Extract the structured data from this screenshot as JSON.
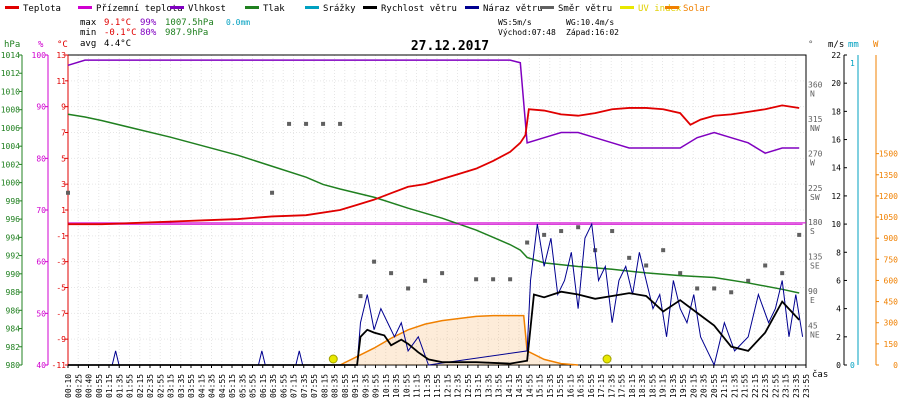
{
  "legend": [
    {
      "label": "Teplota",
      "color": "#e00000"
    },
    {
      "label": "Přízemní teplota",
      "color": "#d000d0"
    },
    {
      "label": "Vlhkost",
      "color": "#8000c0"
    },
    {
      "label": "Tlak",
      "color": "#208020"
    },
    {
      "label": "Srážky",
      "color": "#00a0c0"
    },
    {
      "label": "Rychlost větru",
      "color": "#000000"
    },
    {
      "label": "Náraz větru",
      "color": "#000090"
    },
    {
      "label": "Směr větru",
      "color": "#606060"
    },
    {
      "label": "UV index",
      "color": "#e8e800"
    },
    {
      "label": "Solar",
      "color": "#f08000"
    }
  ],
  "stats": {
    "max_label": "max",
    "max_temp": "9.1°C",
    "max_hum": "99%",
    "max_press": "1007.5hPa",
    "max_rain": "0.0mm",
    "min_label": "min",
    "min_temp": "-0.1°C",
    "min_hum": "80%",
    "min_press": "987.9hPa",
    "avg_label": "avg",
    "avg_temp": "4.4°C",
    "ws": "WS:5m/s",
    "wg": "WG:10.4m/s",
    "sunrise": "Východ:07:48",
    "sunset": "Západ:16:02"
  },
  "chart_data": {
    "type": "line",
    "title": "27.12.2017",
    "x_unit_label": "čas",
    "x_ticks": [
      "00:10",
      "00:25",
      "00:40",
      "00:55",
      "01:15",
      "01:35",
      "01:55",
      "02:15",
      "02:35",
      "02:55",
      "03:15",
      "03:35",
      "03:55",
      "04:15",
      "04:35",
      "04:55",
      "05:15",
      "05:35",
      "05:55",
      "06:15",
      "06:35",
      "06:55",
      "07:15",
      "07:35",
      "07:55",
      "08:15",
      "08:35",
      "08:55",
      "09:15",
      "09:35",
      "09:55",
      "10:15",
      "10:35",
      "10:55",
      "11:15",
      "11:35",
      "11:55",
      "12:15",
      "12:35",
      "12:55",
      "13:15",
      "13:35",
      "13:55",
      "14:15",
      "14:35",
      "14:55",
      "15:15",
      "15:35",
      "15:55",
      "16:15",
      "16:35",
      "16:55",
      "17:15",
      "17:35",
      "17:55",
      "18:15",
      "18:35",
      "18:55",
      "19:15",
      "19:35",
      "19:55",
      "20:15",
      "20:35",
      "20:55",
      "21:15",
      "21:35",
      "21:55",
      "22:15",
      "22:35",
      "22:55",
      "23:15",
      "23:35",
      "23:55"
    ],
    "axes": {
      "hpa": {
        "label": "hPa",
        "range": [
          980,
          1014
        ],
        "ticks": [
          980,
          982,
          984,
          986,
          988,
          990,
          992,
          994,
          996,
          998,
          1000,
          1002,
          1004,
          1006,
          1008,
          1010,
          1012,
          1014
        ]
      },
      "pct": {
        "label": "%",
        "range": [
          40,
          100
        ],
        "ticks": [
          40,
          50,
          60,
          70,
          80,
          90,
          100
        ]
      },
      "degc": {
        "label": "°C",
        "range": [
          -11,
          13
        ],
        "ticks": [
          -11,
          -9,
          -7,
          -5,
          -3,
          -1,
          1,
          3,
          5,
          7,
          9,
          11,
          13
        ]
      },
      "dir": {
        "label": "°",
        "ticks": [
          {
            "v": 45,
            "t": "45",
            "n": "NE"
          },
          {
            "v": 90,
            "t": "90",
            "n": "E"
          },
          {
            "v": 135,
            "t": "135",
            "n": "SE"
          },
          {
            "v": 180,
            "t": "180",
            "n": "S"
          },
          {
            "v": 225,
            "t": "225",
            "n": "SW"
          },
          {
            "v": 270,
            "t": "270",
            "n": "W"
          },
          {
            "v": 315,
            "t": "315",
            "n": "NW"
          },
          {
            "v": 360,
            "t": "360",
            "n": "N"
          }
        ]
      },
      "ms": {
        "label": "m/s",
        "range": [
          0,
          22
        ],
        "ticks": [
          0,
          2,
          4,
          6,
          8,
          10,
          12,
          14,
          16,
          18,
          20,
          22
        ]
      },
      "mm": {
        "label": "mm",
        "range": [
          0,
          1
        ],
        "ticks": [
          0,
          1
        ]
      },
      "w": {
        "label": "W",
        "range": [
          0,
          1500
        ],
        "ticks": [
          0,
          150,
          300,
          450,
          600,
          750,
          900,
          1050,
          1200,
          1350,
          1500
        ]
      }
    },
    "series": [
      {
        "name": "Teplota",
        "axis": "degc",
        "color": "#e00000",
        "points": [
          [
            0,
            -0.1
          ],
          [
            1,
            -0.1
          ],
          [
            2,
            0
          ],
          [
            3,
            0.1
          ],
          [
            4,
            0.2
          ],
          [
            5,
            0.3
          ],
          [
            6,
            0.5
          ],
          [
            7,
            0.6
          ],
          [
            8,
            1.0
          ],
          [
            8.5,
            1.4
          ],
          [
            9,
            1.8
          ],
          [
            9.5,
            2.3
          ],
          [
            10,
            2.8
          ],
          [
            10.5,
            3.0
          ],
          [
            11,
            3.4
          ],
          [
            11.5,
            3.8
          ],
          [
            12,
            4.2
          ],
          [
            12.5,
            4.8
          ],
          [
            13,
            5.5
          ],
          [
            13.3,
            6.2
          ],
          [
            13.45,
            6.8
          ],
          [
            13.55,
            8.8
          ],
          [
            14,
            8.7
          ],
          [
            14.5,
            8.4
          ],
          [
            15,
            8.3
          ],
          [
            15.5,
            8.5
          ],
          [
            16,
            8.8
          ],
          [
            16.5,
            8.9
          ],
          [
            17,
            8.9
          ],
          [
            17.5,
            8.8
          ],
          [
            18,
            8.5
          ],
          [
            18.3,
            7.6
          ],
          [
            18.6,
            8.0
          ],
          [
            19,
            8.3
          ],
          [
            19.5,
            8.4
          ],
          [
            20,
            8.6
          ],
          [
            20.5,
            8.8
          ],
          [
            21,
            9.1
          ],
          [
            21.5,
            8.9
          ]
        ]
      },
      {
        "name": "Přízemní teplota",
        "axis": "degc",
        "color": "#d000d0",
        "points": [
          [
            0,
            -0.1
          ],
          [
            21.6,
            -0.1
          ]
        ]
      },
      {
        "name": "Vlhkost",
        "axis": "pct",
        "color": "#8000c0",
        "points": [
          [
            0,
            98
          ],
          [
            0.5,
            99
          ],
          [
            1,
            99
          ],
          [
            2,
            99
          ],
          [
            3,
            99
          ],
          [
            4,
            99
          ],
          [
            5,
            99
          ],
          [
            6,
            99
          ],
          [
            6.5,
            99
          ],
          [
            7,
            99
          ],
          [
            7.5,
            99
          ],
          [
            8,
            99
          ],
          [
            9,
            99
          ],
          [
            10,
            99
          ],
          [
            11,
            99
          ],
          [
            12,
            99
          ],
          [
            13,
            99
          ],
          [
            13.3,
            98.5
          ],
          [
            13.5,
            83
          ],
          [
            14,
            84
          ],
          [
            14.5,
            85
          ],
          [
            15,
            85
          ],
          [
            15.5,
            84
          ],
          [
            16,
            83
          ],
          [
            16.5,
            82
          ],
          [
            17,
            82
          ],
          [
            17.5,
            82
          ],
          [
            18,
            82
          ],
          [
            18.5,
            84
          ],
          [
            19,
            85
          ],
          [
            19.5,
            84
          ],
          [
            20,
            83
          ],
          [
            20.5,
            81
          ],
          [
            21,
            82
          ],
          [
            21.5,
            82
          ]
        ]
      },
      {
        "name": "Tlak",
        "axis": "hpa",
        "color": "#208020",
        "points": [
          [
            0,
            1007.5
          ],
          [
            0.5,
            1007.2
          ],
          [
            1,
            1006.8
          ],
          [
            2,
            1005.9
          ],
          [
            3,
            1005
          ],
          [
            4,
            1004
          ],
          [
            5,
            1003.0
          ],
          [
            6,
            1001.8
          ],
          [
            7,
            1000.6
          ],
          [
            7.5,
            999.8
          ],
          [
            8,
            999.3
          ],
          [
            9,
            998.4
          ],
          [
            10,
            997.2
          ],
          [
            11,
            996.1
          ],
          [
            12,
            994.8
          ],
          [
            12.5,
            994
          ],
          [
            13,
            993.2
          ],
          [
            13.3,
            992.6
          ],
          [
            13.5,
            991.8
          ],
          [
            14,
            991.2
          ],
          [
            15,
            990.8
          ],
          [
            16,
            990.5
          ],
          [
            17,
            990.1
          ],
          [
            18,
            989.8
          ],
          [
            19,
            989.6
          ],
          [
            20,
            989
          ],
          [
            21,
            988.3
          ],
          [
            21.5,
            987.9
          ]
        ]
      },
      {
        "name": "Rychlost větru",
        "axis": "ms",
        "color": "#000000",
        "points": [
          [
            0,
            0
          ],
          [
            8.5,
            0
          ],
          [
            8.6,
            2
          ],
          [
            8.8,
            2.5
          ],
          [
            9,
            2.3
          ],
          [
            9.3,
            2.1
          ],
          [
            9.5,
            1.4
          ],
          [
            9.8,
            1.8
          ],
          [
            10,
            1.5
          ],
          [
            10.3,
            0.9
          ],
          [
            10.6,
            0.4
          ],
          [
            11,
            0.2
          ],
          [
            12,
            0.2
          ],
          [
            13,
            0.1
          ],
          [
            13.5,
            0.3
          ],
          [
            13.7,
            5
          ],
          [
            14,
            4.8
          ],
          [
            14.5,
            5.2
          ],
          [
            15,
            5.0
          ],
          [
            15.5,
            4.7
          ],
          [
            16,
            4.9
          ],
          [
            16.5,
            5.1
          ],
          [
            17,
            4.9
          ],
          [
            17.5,
            3.8
          ],
          [
            18,
            4.6
          ],
          [
            18.5,
            3.7
          ],
          [
            19,
            2.8
          ],
          [
            19.5,
            1.3
          ],
          [
            20,
            1.0
          ],
          [
            20.5,
            2.3
          ],
          [
            21,
            4.5
          ],
          [
            21.5,
            3.2
          ]
        ]
      },
      {
        "name": "Náraz větru",
        "axis": "ms",
        "color": "#000090",
        "points": [
          [
            0,
            0
          ],
          [
            1.3,
            0
          ],
          [
            1.4,
            1
          ],
          [
            1.5,
            0
          ],
          [
            5.6,
            0
          ],
          [
            5.7,
            1
          ],
          [
            5.8,
            0
          ],
          [
            6.7,
            0
          ],
          [
            6.8,
            1
          ],
          [
            6.9,
            0
          ],
          [
            8.5,
            0
          ],
          [
            8.6,
            3
          ],
          [
            8.8,
            5
          ],
          [
            9,
            2.5
          ],
          [
            9.2,
            4
          ],
          [
            9.4,
            3
          ],
          [
            9.6,
            2
          ],
          [
            9.8,
            3
          ],
          [
            10,
            1
          ],
          [
            10.3,
            2
          ],
          [
            10.6,
            0
          ],
          [
            13.5,
            1
          ],
          [
            13.6,
            6
          ],
          [
            13.8,
            10
          ],
          [
            14,
            7
          ],
          [
            14.2,
            9
          ],
          [
            14.4,
            5
          ],
          [
            14.6,
            6
          ],
          [
            14.8,
            8
          ],
          [
            15,
            4
          ],
          [
            15.2,
            9
          ],
          [
            15.4,
            10
          ],
          [
            15.6,
            6
          ],
          [
            15.8,
            7
          ],
          [
            16,
            3
          ],
          [
            16.2,
            6
          ],
          [
            16.4,
            7
          ],
          [
            16.6,
            5
          ],
          [
            16.8,
            8
          ],
          [
            17,
            6
          ],
          [
            17.2,
            4
          ],
          [
            17.4,
            5
          ],
          [
            17.6,
            2
          ],
          [
            17.8,
            6
          ],
          [
            18,
            4
          ],
          [
            18.2,
            3
          ],
          [
            18.4,
            5
          ],
          [
            18.6,
            2
          ],
          [
            18.8,
            1
          ],
          [
            19,
            0
          ],
          [
            19.3,
            3
          ],
          [
            19.6,
            1
          ],
          [
            20,
            2
          ],
          [
            20.3,
            5
          ],
          [
            20.6,
            3
          ],
          [
            20.8,
            4
          ],
          [
            21,
            6
          ],
          [
            21.2,
            2
          ],
          [
            21.4,
            5
          ],
          [
            21.6,
            2
          ]
        ]
      },
      {
        "name": "Směr větru",
        "axis": "dir",
        "color": "#606060",
        "points": [
          [
            0,
            225
          ],
          [
            6,
            225
          ],
          [
            6.5,
            315
          ],
          [
            7,
            315
          ],
          [
            7.5,
            315
          ],
          [
            8,
            315
          ],
          [
            8.6,
            90
          ],
          [
            9,
            135
          ],
          [
            9.5,
            120
          ],
          [
            10,
            100
          ],
          [
            10.5,
            110
          ],
          [
            11,
            120
          ],
          [
            12,
            112
          ],
          [
            12.5,
            112
          ],
          [
            13,
            112
          ],
          [
            13.5,
            160
          ],
          [
            14,
            170
          ],
          [
            14.5,
            175
          ],
          [
            15,
            180
          ],
          [
            15.5,
            150
          ],
          [
            16,
            175
          ],
          [
            16.5,
            140
          ],
          [
            17,
            130
          ],
          [
            17.5,
            150
          ],
          [
            18,
            120
          ],
          [
            18.5,
            100
          ],
          [
            19,
            100
          ],
          [
            19.5,
            95
          ],
          [
            20,
            110
          ],
          [
            20.5,
            130
          ],
          [
            21,
            120
          ],
          [
            21.5,
            170
          ]
        ]
      },
      {
        "name": "Solar",
        "axis": "w",
        "color": "#f08000",
        "points": [
          [
            8.0,
            0
          ],
          [
            8.5,
            60
          ],
          [
            9,
            120
          ],
          [
            9.5,
            190
          ],
          [
            10,
            250
          ],
          [
            10.5,
            290
          ],
          [
            11,
            315
          ],
          [
            11.5,
            330
          ],
          [
            12,
            345
          ],
          [
            12.5,
            350
          ],
          [
            13,
            350
          ],
          [
            13.4,
            350
          ],
          [
            13.5,
            100
          ],
          [
            14,
            40
          ],
          [
            14.5,
            10
          ],
          [
            15,
            0
          ]
        ]
      }
    ],
    "uv_markers": [
      {
        "x": 7.8,
        "label": "sunrise"
      },
      {
        "x": 15.85,
        "label": "sunset"
      }
    ]
  }
}
